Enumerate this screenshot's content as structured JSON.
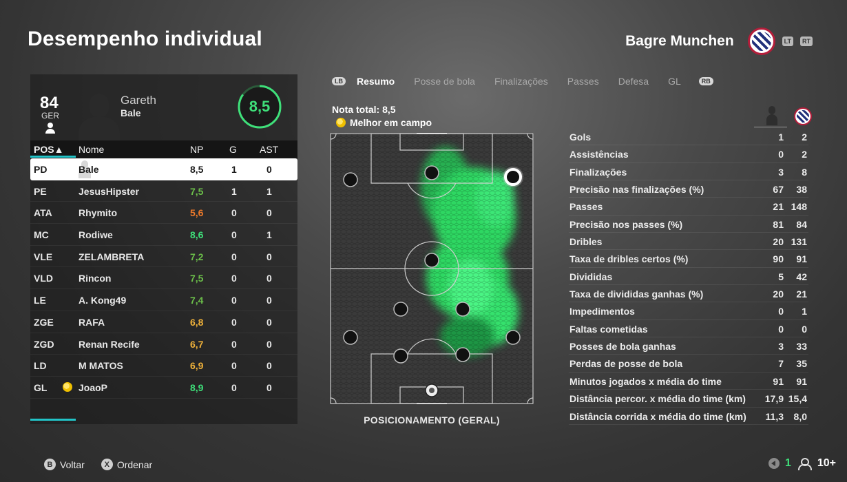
{
  "page": {
    "title": "Desempenho individual"
  },
  "team": {
    "name": "Bagre Munchen",
    "lt_label": "LT",
    "rt_label": "RT",
    "crest_icon": "club-crest-icon"
  },
  "player": {
    "overall": "84",
    "position": "GER",
    "first_name": "Gareth",
    "last_name": "Bale",
    "rating": "8,5",
    "rating_color": "#3fe07a"
  },
  "table": {
    "headers": {
      "pos": "POS▲",
      "name": "Nome",
      "np": "NP",
      "g": "G",
      "ast": "AST"
    },
    "rows": [
      {
        "pos": "PD",
        "name": "Bale",
        "np": "8,5",
        "g": "1",
        "ast": "0",
        "np_color": "#1a1a1a"
      },
      {
        "pos": "PE",
        "name": "JesusHipster",
        "np": "7,5",
        "g": "1",
        "ast": "1",
        "np_color": "#6cc04a"
      },
      {
        "pos": "ATA",
        "name": "Rhymito",
        "np": "5,6",
        "g": "0",
        "ast": "0",
        "np_color": "#f07a2a"
      },
      {
        "pos": "MC",
        "name": "Rodiwe",
        "np": "8,6",
        "g": "0",
        "ast": "1",
        "np_color": "#3fe07a"
      },
      {
        "pos": "VLE",
        "name": "ZELAMBRETA",
        "np": "7,2",
        "g": "0",
        "ast": "0",
        "np_color": "#6cc04a"
      },
      {
        "pos": "VLD",
        "name": "Rincon",
        "np": "7,5",
        "g": "0",
        "ast": "0",
        "np_color": "#6cc04a"
      },
      {
        "pos": "LE",
        "name": "A. Kong49",
        "np": "7,4",
        "g": "0",
        "ast": "0",
        "np_color": "#6cc04a"
      },
      {
        "pos": "ZGE",
        "name": "RAFA",
        "np": "6,8",
        "g": "0",
        "ast": "0",
        "np_color": "#f0b23a"
      },
      {
        "pos": "ZGD",
        "name": "Renan Recife",
        "np": "6,7",
        "g": "0",
        "ast": "0",
        "np_color": "#f0b23a"
      },
      {
        "pos": "LD",
        "name": "M MATOS",
        "np": "6,9",
        "g": "0",
        "ast": "0",
        "np_color": "#f0b23a"
      },
      {
        "pos": "GL",
        "name": "JoaoP",
        "np": "8,9",
        "g": "0",
        "ast": "0",
        "np_color": "#3fe07a",
        "motm": true
      }
    ]
  },
  "tabs": {
    "lb": "LB",
    "rb": "RB",
    "items": [
      "Resumo",
      "Posse de bola",
      "Finalizações",
      "Passes",
      "Defesa",
      "GL"
    ],
    "active": 0
  },
  "summary": {
    "nota_total": "Nota total: 8,5",
    "motm_label": "Melhor em campo"
  },
  "pitch": {
    "caption": "POSICIONAMENTO (GERAL)",
    "heat_color": "#2ee065"
  },
  "stats": [
    {
      "label": "Gols",
      "player": "1",
      "team": "2"
    },
    {
      "label": "Assistências",
      "player": "0",
      "team": "2"
    },
    {
      "label": "Finalizações",
      "player": "3",
      "team": "8"
    },
    {
      "label": "Precisão nas finalizações (%)",
      "player": "67",
      "team": "38"
    },
    {
      "label": "Passes",
      "player": "21",
      "team": "148"
    },
    {
      "label": "Precisão nos passes (%)",
      "player": "81",
      "team": "84"
    },
    {
      "label": "Dribles",
      "player": "20",
      "team": "131"
    },
    {
      "label": "Taxa de dribles certos (%)",
      "player": "90",
      "team": "91"
    },
    {
      "label": "Divididas",
      "player": "5",
      "team": "42"
    },
    {
      "label": "Taxa de divididas ganhas (%)",
      "player": "20",
      "team": "21"
    },
    {
      "label": "Impedimentos",
      "player": "0",
      "team": "1"
    },
    {
      "label": "Faltas cometidas",
      "player": "0",
      "team": "0"
    },
    {
      "label": "Posses de bola ganhas",
      "player": "3",
      "team": "33"
    },
    {
      "label": "Perdas de posse de bola",
      "player": "7",
      "team": "35"
    },
    {
      "label": "Minutos jogados x média do time",
      "player": "91",
      "team": "91"
    },
    {
      "label": "Distância percor. x média do time (km)",
      "player": "17,9",
      "team": "15,4"
    },
    {
      "label": "Distância corrida x média do time (km)",
      "player": "11,3",
      "team": "8,0"
    }
  ],
  "footer": {
    "back_glyph": "B",
    "back_label": "Voltar",
    "sort_glyph": "X",
    "sort_label": "Ordenar",
    "online_count": "1",
    "players_count": "10+"
  }
}
